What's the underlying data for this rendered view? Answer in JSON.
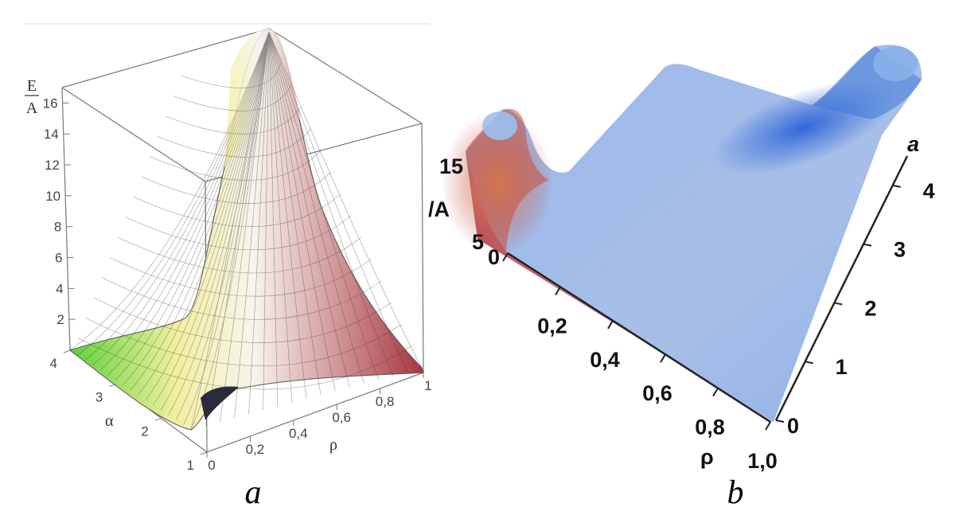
{
  "chart_data": [
    {
      "type": "surface3d",
      "panel_label": "a",
      "zlabel_num": "E",
      "zlabel_den": "A",
      "xlabel": "ρ",
      "ylabel": "α",
      "x_ticks": [
        "0",
        "0,2",
        "0,4",
        "0,6",
        "0,8",
        "1"
      ],
      "y_ticks": [
        "1",
        "2",
        "3",
        "4"
      ],
      "z_ticks": [
        "2",
        "4",
        "6",
        "8",
        "10",
        "12",
        "14",
        "16"
      ],
      "xlim": [
        0,
        1
      ],
      "ylim": [
        1,
        4
      ],
      "zlim": [
        0,
        17
      ],
      "colors": {
        "low": "#5ed13a",
        "mid": "#f2efa0",
        "peak": "#f7f4ee",
        "high_rho": "#a8363f",
        "dip": "#2a2a3a"
      }
    },
    {
      "type": "surface3d",
      "panel_label": "b",
      "zlabel": "/A",
      "xlabel": "ρ",
      "ylabel": "a",
      "x_ticks": [
        "0",
        "0,2",
        "0,4",
        "0,6",
        "0,8",
        "1,0"
      ],
      "y_ticks": [
        "0",
        "1",
        "2",
        "3",
        "4"
      ],
      "z_ticks": [
        "5",
        "15"
      ],
      "xlim": [
        0,
        1
      ],
      "ylim": [
        0,
        4.5
      ],
      "colors": {
        "surface": "#9ab8ea",
        "ridge": "#2c64d6",
        "warm": "#c0454a",
        "front": "#c7a0b4"
      }
    }
  ]
}
